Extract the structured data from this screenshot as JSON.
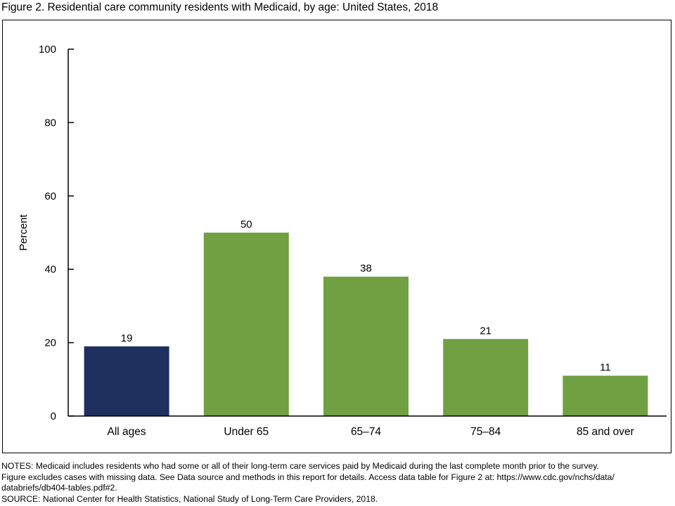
{
  "figure": {
    "title": "Figure 2. Residential care community residents with Medicaid, by age: United States, 2018"
  },
  "chart_data": {
    "type": "bar",
    "title": "Figure 2. Residential care community residents with Medicaid, by age: United States, 2018",
    "xlabel": "",
    "ylabel": "Percent",
    "categories": [
      "All ages",
      "Under 65",
      "65–74",
      "75–84",
      "85 and over"
    ],
    "values": [
      19,
      50,
      38,
      21,
      11
    ],
    "data_labels": [
      "19",
      "50",
      "38",
      "21",
      "11"
    ],
    "bar_colors": [
      "#1f2f5e",
      "#70a042",
      "#70a042",
      "#70a042",
      "#70a042"
    ],
    "ylim": [
      0,
      100
    ],
    "yticks": [
      0,
      20,
      40,
      60,
      80,
      100
    ],
    "ytick_labels": [
      "0",
      "20",
      "40",
      "60",
      "80",
      "100"
    ],
    "grid": false,
    "legend": "none"
  },
  "notes": {
    "lines": [
      "NOTES: Medicaid includes residents who had some or all of their long-term care services paid by Medicaid during the last complete month prior to the survey.",
      "Figure excludes cases with missing data. See Data source and methods in this report for details. Access data table for Figure 2 at: https://www.cdc.gov/nchs/data/",
      "databriefs/db404-tables.pdf#2.",
      "SOURCE: National Center for Health Statistics, National Study of Long-Term Care Providers, 2018."
    ]
  }
}
